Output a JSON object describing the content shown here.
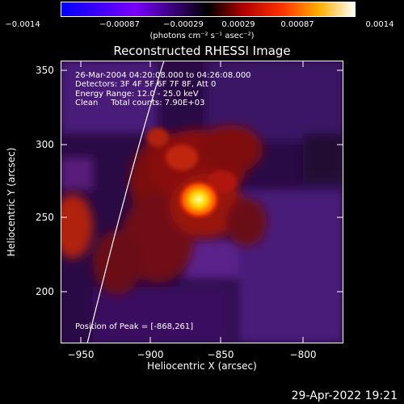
{
  "colorbar": {
    "ticks": [
      "−0.0014",
      "−0.00087",
      "−0.00029",
      "0.00029",
      "0.00087",
      "0.0014"
    ],
    "units_text": "(photons cm⁻² s⁻¹ asec⁻²)"
  },
  "image": {
    "title": "Reconstructed RHESSI Image",
    "time_range": "26-Mar-2004 04:20:08.000 to 04:26:08.000",
    "detectors": "Detectors: 3F 4F 5F 6F 7F 8F, Att 0",
    "energy": "Energy Range: 12.0 - 25.0 keV",
    "clean": "Clean     Total counts: 7.90E+03",
    "peak": "Position of Peak = [-868,261]"
  },
  "axes": {
    "x_ticks": [
      "−950",
      "−900",
      "−850",
      "−800"
    ],
    "y_ticks": [
      "350",
      "300",
      "250",
      "200"
    ],
    "xlabel": "Heliocentric X (arcsec)",
    "ylabel": "Heliocentric Y (arcsec)"
  },
  "footer_date": "29-Apr-2022 19:21",
  "colors": {
    "background": "#000000",
    "text": "#ffffff"
  }
}
